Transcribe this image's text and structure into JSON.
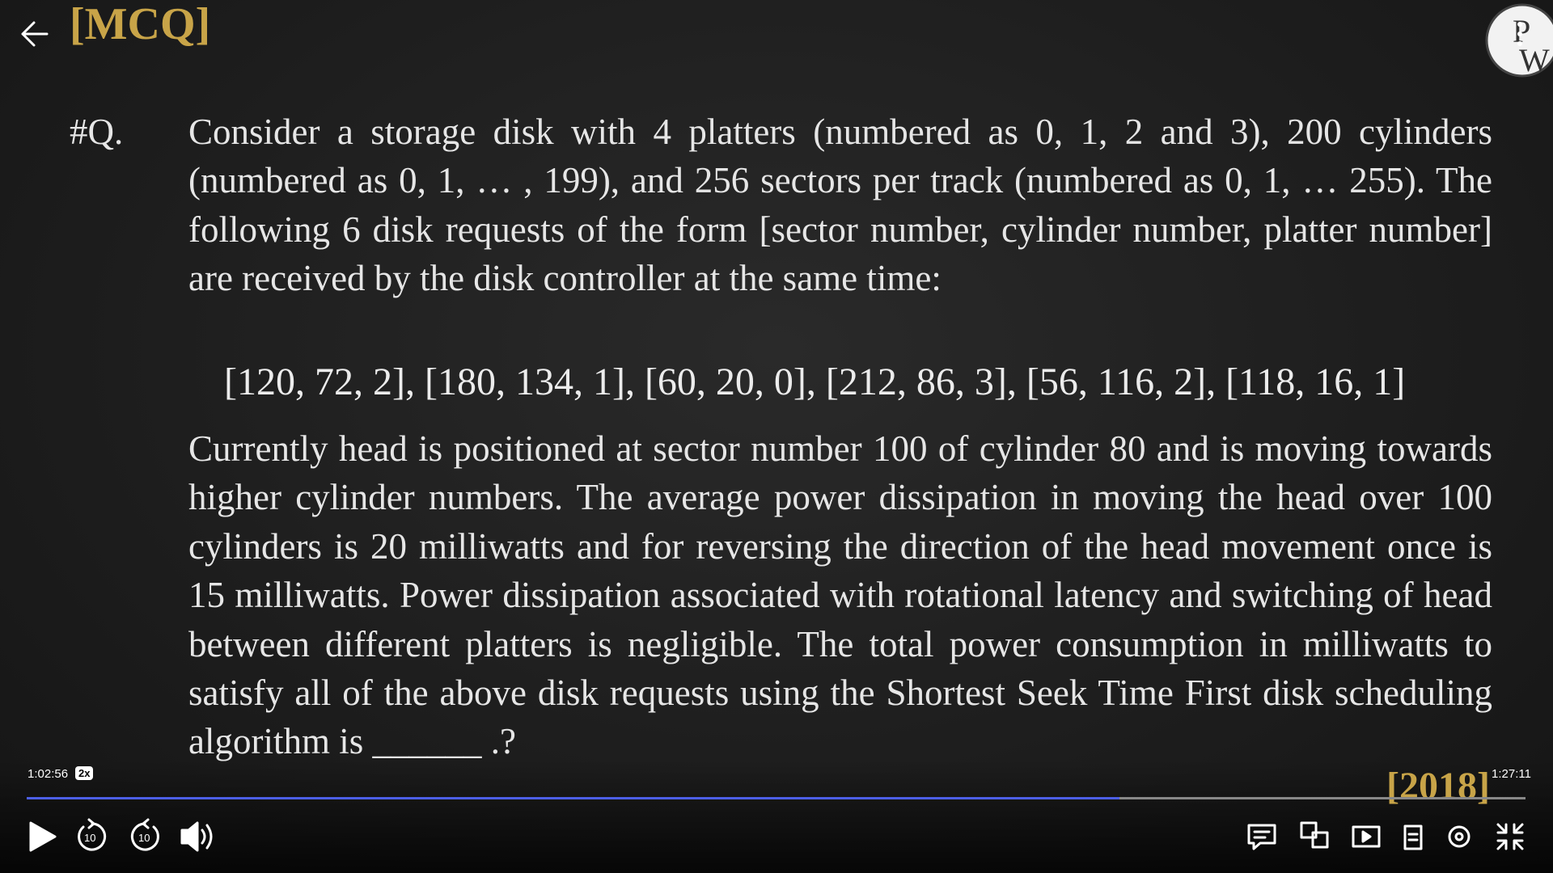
{
  "header": {
    "title": "[MCQ]"
  },
  "question": {
    "label": "#Q.",
    "paragraph_1": "Consider a storage disk with 4 platters (numbered as 0, 1, 2 and 3), 200 cylinders (numbered as 0, 1, … , 199), and 256 sectors per track (numbered as 0, 1, … 255). The following 6 disk requests of the form [sector number, cylinder number, platter number] are received by the disk controller at the same time:",
    "requests": "[120, 72, 2], [180, 134, 1], [60, 20, 0], [212, 86, 3], [56, 116, 2], [118, 16, 1]",
    "paragraph_2": "Currently head is positioned at sector number 100 of cylinder 80 and is moving towards higher cylinder numbers. The average power dissipation in moving the head over 100 cylinders is 20 milliwatts and for reversing the direction of the head movement once is 15 milliwatts. Power dissipation associated with rotational latency and switching of head between different platters is negligible. The total power consumption in milliwatts to satisfy all of the above disk requests using the Shortest Seek Time First disk scheduling algorithm is ______ .?",
    "year": "[2018]"
  },
  "player": {
    "current_time": "1:02:56",
    "speed": "2x",
    "duration": "1:27:11"
  }
}
